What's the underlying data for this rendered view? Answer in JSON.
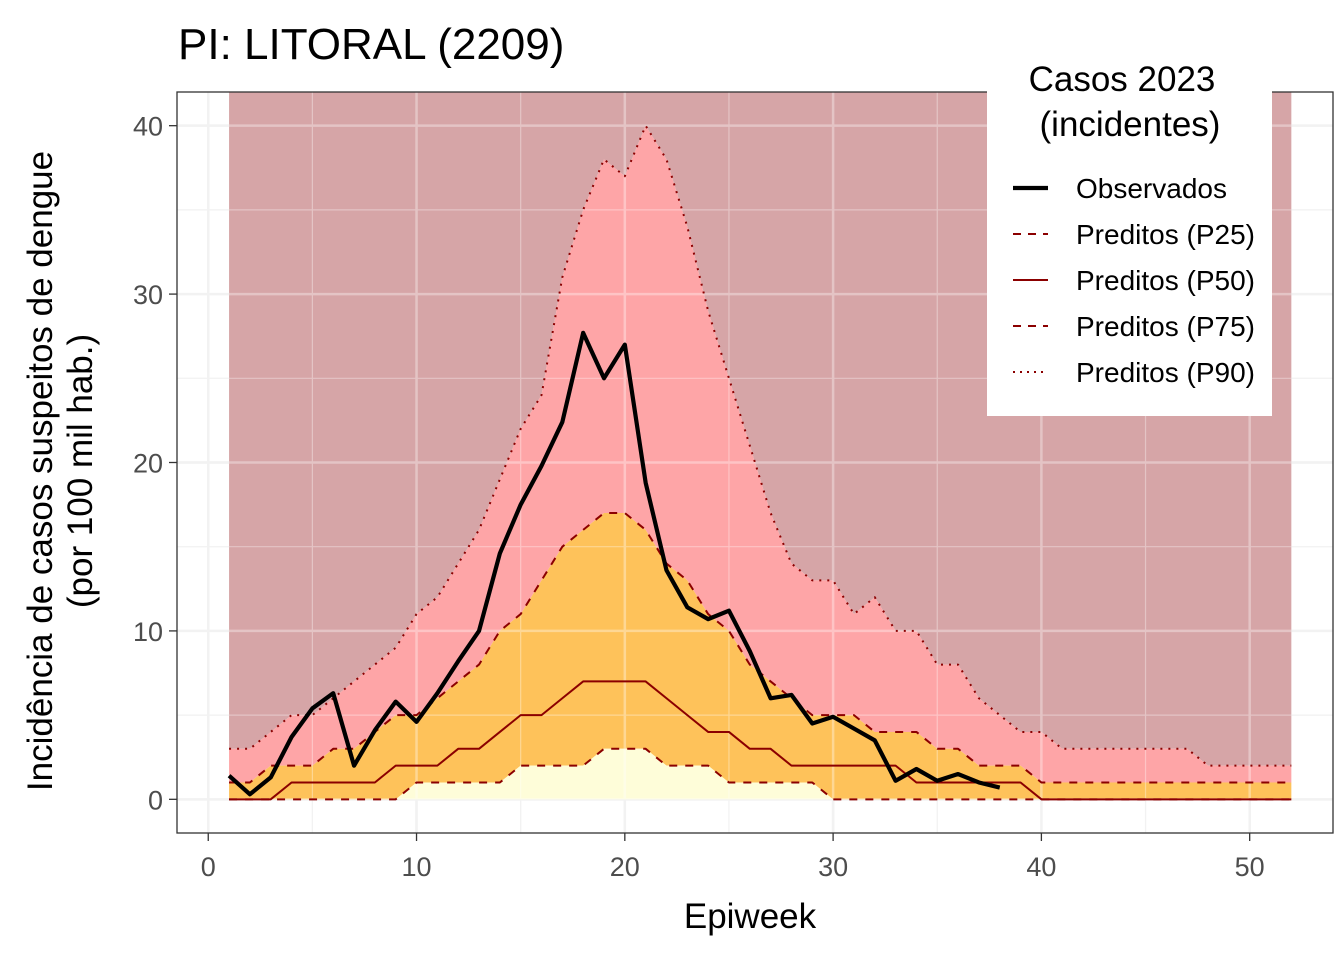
{
  "chart_data": {
    "type": "area",
    "title": "PI: LITORAL (2209)",
    "xlabel": "Epiweek",
    "ylabel_line1": "Incidência de casos suspeitos de dengue",
    "ylabel_line2": "(por 100 mil hab.)",
    "xlim": [
      -1.5,
      54
    ],
    "ylim": [
      -2,
      42
    ],
    "x_ticks": [
      0,
      10,
      20,
      30,
      40,
      50
    ],
    "x_tick_labels": [
      "0",
      "10",
      "20",
      "30",
      "40",
      "50"
    ],
    "y_ticks": [
      0,
      10,
      20,
      30,
      40
    ],
    "y_tick_labels": [
      "0",
      "10",
      "20",
      "30",
      "40"
    ],
    "grid": true,
    "legend": {
      "title_line1": "Casos 2023",
      "title_line2": "(incidentes)",
      "placement": "top-right",
      "items": [
        {
          "label": "Observados",
          "style": "solid-thick"
        },
        {
          "label": "Preditos (P25)",
          "style": "dashed"
        },
        {
          "label": "Preditos (P50)",
          "style": "solid"
        },
        {
          "label": "Preditos (P75)",
          "style": "dashed"
        },
        {
          "label": "Preditos (P90)",
          "style": "dotted"
        }
      ]
    },
    "colors": {
      "panel_bg": "#ffffff",
      "grid": "#ebebeb",
      "band_top": "#d6a5a7",
      "band_p75_p90": "#fea5a7",
      "band_p25_p75": "#fec25a",
      "band_below_p25": "#fefdd9",
      "predicted_line": "#8b0000",
      "observed_line": "#000000"
    },
    "band_ymax": 42,
    "x": [
      1,
      2,
      3,
      4,
      5,
      6,
      7,
      8,
      9,
      10,
      11,
      12,
      13,
      14,
      15,
      16,
      17,
      18,
      19,
      20,
      21,
      22,
      23,
      24,
      25,
      26,
      27,
      28,
      29,
      30,
      31,
      32,
      33,
      34,
      35,
      36,
      37,
      38,
      39,
      40,
      41,
      42,
      43,
      44,
      45,
      46,
      47,
      48,
      49,
      50,
      51,
      52
    ],
    "series": [
      {
        "name": "Preditos (P25)",
        "values": [
          0,
          0,
          0,
          0,
          0,
          0,
          0,
          0,
          0,
          1,
          1,
          1,
          1,
          1,
          2,
          2,
          2,
          2,
          3,
          3,
          3,
          2,
          2,
          2,
          1,
          1,
          1,
          1,
          1,
          0,
          0,
          0,
          0,
          0,
          0,
          0,
          0,
          0,
          0,
          0,
          0,
          0,
          0,
          0,
          0,
          0,
          0,
          0,
          0,
          0,
          0,
          0
        ]
      },
      {
        "name": "Preditos (P50)",
        "values": [
          0,
          0,
          0,
          1,
          1,
          1,
          1,
          1,
          2,
          2,
          2,
          3,
          3,
          4,
          5,
          5,
          6,
          7,
          7,
          7,
          7,
          6,
          5,
          4,
          4,
          3,
          3,
          2,
          2,
          2,
          2,
          2,
          2,
          1,
          1,
          1,
          1,
          1,
          1,
          0,
          0,
          0,
          0,
          0,
          0,
          0,
          0,
          0,
          0,
          0,
          0,
          0
        ]
      },
      {
        "name": "Preditos (P75)",
        "values": [
          1,
          1,
          2,
          2,
          2,
          3,
          3,
          4,
          5,
          5,
          6,
          7,
          8,
          10,
          11,
          13,
          15,
          16,
          17,
          17,
          16,
          14,
          13,
          11,
          10,
          8,
          7,
          6,
          5,
          5,
          5,
          4,
          4,
          4,
          3,
          3,
          2,
          2,
          2,
          1,
          1,
          1,
          1,
          1,
          1,
          1,
          1,
          1,
          1,
          1,
          1,
          1
        ]
      },
      {
        "name": "Preditos (P90)",
        "values": [
          3,
          3,
          4,
          5,
          5,
          6,
          7,
          8,
          9,
          11,
          12,
          14,
          16,
          19,
          22,
          24,
          31,
          35,
          38,
          37,
          40,
          38,
          34,
          29,
          25,
          21,
          17,
          14,
          13,
          13,
          11,
          12,
          10,
          10,
          8,
          8,
          6,
          5,
          4,
          4,
          3,
          3,
          3,
          3,
          3,
          3,
          3,
          2,
          2,
          2,
          2,
          2
        ]
      },
      {
        "name": "Observados",
        "x": [
          1,
          2,
          3,
          4,
          5,
          6,
          7,
          8,
          9,
          10,
          11,
          12,
          13,
          14,
          15,
          16,
          17,
          18,
          19,
          20,
          21,
          22,
          23,
          24,
          25,
          26,
          27,
          28,
          29,
          30,
          31,
          32,
          33,
          34,
          35,
          36,
          37,
          38
        ],
        "values": [
          1.4,
          0.3,
          1.3,
          3.7,
          5.4,
          6.3,
          2.0,
          4.1,
          5.8,
          4.6,
          6.3,
          8.2,
          10.0,
          14.6,
          17.5,
          19.8,
          22.4,
          27.7,
          25.0,
          27.0,
          18.8,
          13.6,
          11.4,
          10.7,
          11.2,
          8.8,
          6.0,
          6.2,
          4.5,
          4.9,
          4.2,
          3.5,
          1.1,
          1.8,
          1.1,
          1.5,
          1.0,
          0.7
        ]
      }
    ]
  }
}
